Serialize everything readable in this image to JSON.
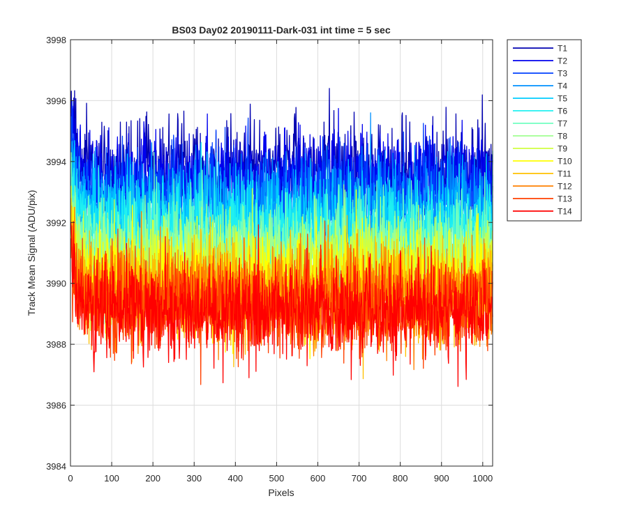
{
  "chart_data": {
    "type": "line",
    "title": "BS03 Day02 20190111-Dark-031 int time = 5 sec",
    "xlabel": "Pixels",
    "ylabel": "Track Mean Signal (ADU/pix)",
    "xlim": [
      0,
      1024
    ],
    "ylim": [
      3984,
      3998
    ],
    "xticks": [
      0,
      100,
      200,
      300,
      400,
      500,
      600,
      700,
      800,
      900,
      1000
    ],
    "yticks": [
      3984,
      3986,
      3988,
      3990,
      3992,
      3994,
      3996,
      3998
    ],
    "grid": true,
    "legend_position": "outside-top-right",
    "colormap": "jet",
    "x_range": [
      1,
      1024
    ],
    "series": [
      {
        "name": "T1",
        "color": "#0000b0",
        "mean": 3993.7,
        "noise_sd": 0.8,
        "start_value": 3995.8,
        "min": 3992.0,
        "max": 3996.8
      },
      {
        "name": "T2",
        "color": "#0000ee",
        "mean": 3993.4,
        "noise_sd": 0.8,
        "start_value": 3995.5,
        "min": 3991.6,
        "max": 3996.6
      },
      {
        "name": "T3",
        "color": "#0040ff",
        "mean": 3993.0,
        "noise_sd": 0.8,
        "start_value": 3995.0,
        "min": 3991.0,
        "max": 3996.0
      },
      {
        "name": "T4",
        "color": "#0090ff",
        "mean": 3992.5,
        "noise_sd": 0.8,
        "start_value": 3994.6,
        "min": 3990.6,
        "max": 3995.6
      },
      {
        "name": "T5",
        "color": "#00ccff",
        "mean": 3992.1,
        "noise_sd": 0.8,
        "start_value": 3994.2,
        "min": 3990.2,
        "max": 3995.2
      },
      {
        "name": "T6",
        "color": "#20f0f0",
        "mean": 3991.7,
        "noise_sd": 0.8,
        "start_value": 3993.8,
        "min": 3988.8,
        "max": 3994.8
      },
      {
        "name": "T7",
        "color": "#70ffc0",
        "mean": 3991.2,
        "noise_sd": 0.8,
        "start_value": 3993.4,
        "min": 3987.5,
        "max": 3994.3
      },
      {
        "name": "T8",
        "color": "#a0ff90",
        "mean": 3990.8,
        "noise_sd": 0.8,
        "start_value": 3993.0,
        "min": 3987.0,
        "max": 3993.9
      },
      {
        "name": "T9",
        "color": "#d0ff40",
        "mean": 3990.4,
        "noise_sd": 0.8,
        "start_value": 3992.6,
        "min": 3986.5,
        "max": 3993.4
      },
      {
        "name": "T10",
        "color": "#ffff00",
        "mean": 3990.1,
        "noise_sd": 0.8,
        "start_value": 3992.3,
        "min": 3986.5,
        "max": 3993.1
      },
      {
        "name": "T11",
        "color": "#ffc000",
        "mean": 3989.8,
        "noise_sd": 0.8,
        "start_value": 3992.0,
        "min": 3985.7,
        "max": 3992.8
      },
      {
        "name": "T12",
        "color": "#ff8000",
        "mean": 3989.5,
        "noise_sd": 0.8,
        "start_value": 3991.7,
        "min": 3986.5,
        "max": 3992.5
      },
      {
        "name": "T13",
        "color": "#ff4000",
        "mean": 3989.3,
        "noise_sd": 0.8,
        "start_value": 3991.4,
        "min": 3986.2,
        "max": 3992.3
      },
      {
        "name": "T14",
        "color": "#ff0000",
        "mean": 3989.1,
        "noise_sd": 0.8,
        "start_value": 3991.2,
        "min": 3985.6,
        "max": 3992.1
      }
    ]
  }
}
